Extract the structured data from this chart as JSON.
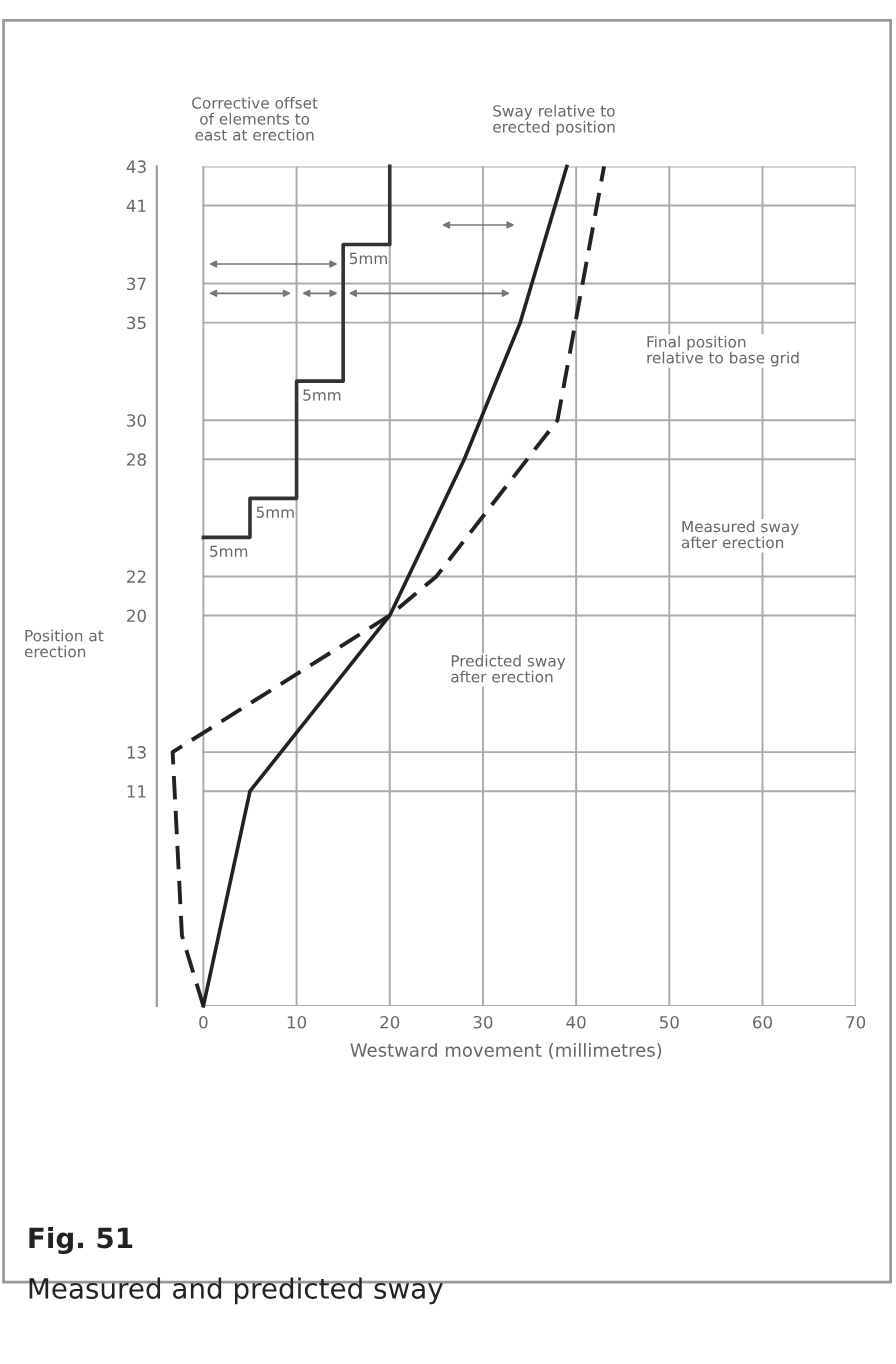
{
  "chart_data": {
    "type": "line",
    "title": "Fig. 51",
    "subtitle": "Measured and predicted sway",
    "xlabel": "Westward movement (millimetres)",
    "xlim": [
      -5,
      70
    ],
    "xticks": [
      0,
      10,
      20,
      30,
      40,
      50,
      60,
      70
    ],
    "ylim": [
      0,
      43
    ],
    "yticks": [
      {
        "value": 0,
        "label": null
      },
      11,
      13,
      20,
      22,
      28,
      30,
      35,
      37,
      41,
      43
    ],
    "grid": true,
    "series": [
      {
        "color": "#222222",
        "line_style": "solid",
        "x": [
          0,
          5,
          20,
          28,
          34,
          39
        ],
        "values": [
          0,
          11,
          20,
          28,
          35,
          43
        ]
      },
      {
        "color": "#222222",
        "line_style": "dashed",
        "x": [
          0,
          -2.3,
          -3.3,
          20,
          25,
          38,
          43
        ],
        "values": [
          0,
          3.6,
          13,
          20,
          22,
          30,
          43
        ]
      },
      {
        "color": "#333333",
        "line_style": "solid",
        "x": [
          0,
          5,
          5,
          10,
          10,
          15,
          15,
          20,
          20
        ],
        "values": [
          24,
          24,
          26,
          26,
          32,
          32,
          39,
          39,
          43
        ]
      }
    ],
    "annotations": [
      "Corrective offset of elements to east at erection",
      "Sway relative to erected position",
      "Final position relative to base grid",
      "Measured sway after erection",
      "Predicted sway after erection",
      "Position at erection",
      {
        "text": "5mm",
        "x": 15,
        "y": 39
      },
      {
        "text": "5mm",
        "x": 10,
        "y": 32
      },
      {
        "text": "5mm",
        "x": 5,
        "y": 26
      },
      {
        "text": "5mm",
        "x": 0,
        "y": 24
      }
    ]
  }
}
